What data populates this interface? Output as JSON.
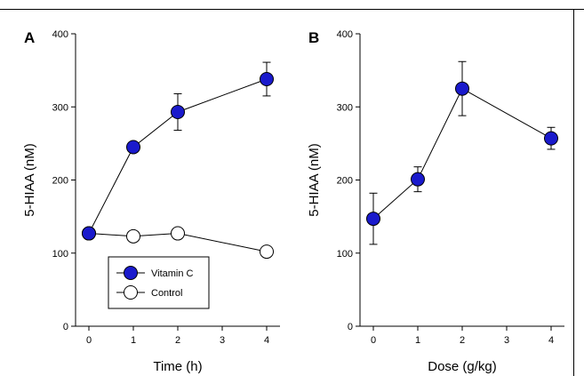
{
  "chart_data": [
    {
      "type": "line",
      "panel_label": "A",
      "xlabel": "Time (h)",
      "ylabel": "5-HIAA (nM)",
      "ylim": [
        0,
        400
      ],
      "yticks": [
        "0",
        "100",
        "200",
        "300",
        "400"
      ],
      "xticks": [
        {
          "value": 0,
          "label": "0"
        },
        {
          "value": 1,
          "label": "1"
        },
        {
          "value": 2,
          "label": "2"
        },
        {
          "value": 3,
          "label": "3"
        },
        {
          "value": 4,
          "label": "4"
        }
      ],
      "xlim": [
        -0.3,
        4.3
      ],
      "grid": false,
      "legend_position": "bottom-left",
      "series": [
        {
          "name": "Vitamin C",
          "marker": "filled-circle",
          "color": "#1a1acc",
          "x": [
            0,
            1,
            2,
            4
          ],
          "y": [
            127,
            245,
            293,
            338
          ],
          "err": [
            0,
            0,
            25,
            23
          ]
        },
        {
          "name": "Control",
          "marker": "open-circle",
          "color": "#ffffff",
          "x": [
            0,
            1,
            2,
            4
          ],
          "y": [
            127,
            123,
            127,
            102
          ],
          "err": [
            0,
            0,
            0,
            0
          ]
        }
      ]
    },
    {
      "type": "line",
      "panel_label": "B",
      "xlabel": "Dose (g/kg)",
      "ylabel": "5-HIAA (nM)",
      "ylim": [
        0,
        400
      ],
      "yticks": [
        "0",
        "100",
        "200",
        "300",
        "400"
      ],
      "xticks": [
        {
          "value": 0,
          "label": "0"
        },
        {
          "value": 1,
          "label": "1"
        },
        {
          "value": 2,
          "label": "2"
        },
        {
          "value": 3,
          "label": "3"
        },
        {
          "value": 4,
          "label": "4"
        }
      ],
      "xlim": [
        -0.3,
        4.3
      ],
      "grid": false,
      "series": [
        {
          "marker": "filled-circle",
          "color": "#1a1acc",
          "x": [
            0,
            1,
            2,
            4
          ],
          "y": [
            147,
            201,
            325,
            257
          ],
          "err": [
            35,
            17,
            37,
            15
          ]
        }
      ]
    }
  ]
}
